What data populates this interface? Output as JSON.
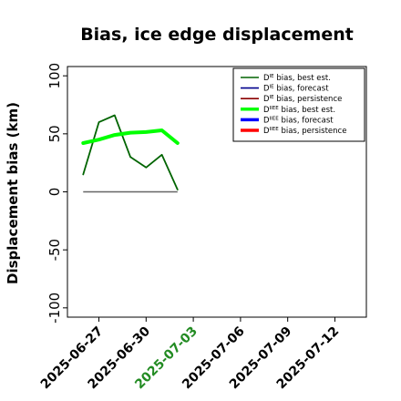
{
  "chart_data": {
    "type": "line",
    "title": "Bias, ice edge displacement",
    "xlabel": "",
    "ylabel": "Displacement bias (km)",
    "ylim": [
      -108,
      108
    ],
    "xlim": [
      "2025-06-25",
      "2025-07-14"
    ],
    "yticks": [
      -100,
      -50,
      0,
      50,
      100
    ],
    "xticks": [
      {
        "date": "2025-06-27",
        "label": "2025-06-27",
        "color": "#000000"
      },
      {
        "date": "2025-06-30",
        "label": "2025-06-30",
        "color": "#000000"
      },
      {
        "date": "2025-07-03",
        "label": "2025-07-03",
        "color": "#228b22"
      },
      {
        "date": "2025-07-06",
        "label": "2025-07-06",
        "color": "#000000"
      },
      {
        "date": "2025-07-09",
        "label": "2025-07-09",
        "color": "#000000"
      },
      {
        "date": "2025-07-12",
        "label": "2025-07-12",
        "color": "#000000"
      }
    ],
    "grid": false,
    "legend_position": "top-right",
    "series": [
      {
        "name": "D",
        "sup": "IE",
        "suffix": " bias, best est.",
        "color": "#006400",
        "width": 1.8,
        "x": [
          "2025-06-26",
          "2025-06-27",
          "2025-06-28",
          "2025-06-29",
          "2025-06-30",
          "2025-07-01",
          "2025-07-02"
        ],
        "y": [
          15,
          60,
          66,
          30,
          21,
          32,
          2
        ]
      },
      {
        "name": "D",
        "sup": "IE",
        "suffix": " bias, forecast",
        "color": "#00008b",
        "width": 1.8,
        "x": [],
        "y": []
      },
      {
        "name": "D",
        "sup": "IE",
        "suffix": " bias, persistence",
        "color": "#8b0000",
        "width": 1.2,
        "x": [],
        "y": []
      },
      {
        "name": "D",
        "sup": "IIEE",
        "suffix": " bias, best est.",
        "color": "#00ff00",
        "width": 4,
        "x": [
          "2025-06-26",
          "2025-06-27",
          "2025-06-28",
          "2025-06-29",
          "2025-06-30",
          "2025-07-01",
          "2025-07-02"
        ],
        "y": [
          42,
          45,
          49,
          51,
          51.5,
          53,
          42
        ]
      },
      {
        "name": "D",
        "sup": "IIEE",
        "suffix": " bias, forecast",
        "color": "#0000ff",
        "width": 4,
        "x": [],
        "y": []
      },
      {
        "name": "D",
        "sup": "IIEE",
        "suffix": " bias, persistence",
        "color": "#ff0000",
        "width": 4,
        "x": [],
        "y": []
      }
    ],
    "reference_line": {
      "y": 0,
      "x": [
        "2025-06-26",
        "2025-07-02"
      ],
      "color": "#666666"
    }
  }
}
